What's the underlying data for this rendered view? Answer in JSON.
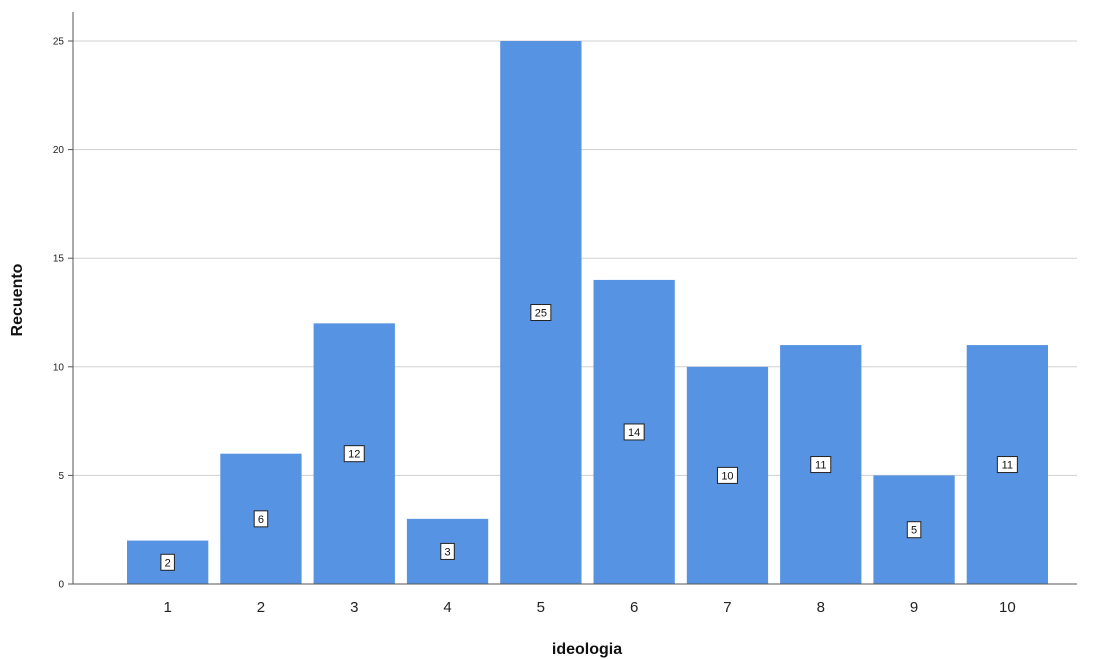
{
  "chart_data": {
    "type": "bar",
    "categories": [
      "1",
      "2",
      "3",
      "4",
      "5",
      "6",
      "7",
      "8",
      "9",
      "10"
    ],
    "values": [
      2,
      6,
      12,
      3,
      25,
      14,
      10,
      11,
      5,
      11
    ],
    "data_labels": [
      "2",
      "6",
      "12",
      "3",
      "25",
      "14",
      "10",
      "11",
      "5",
      "11"
    ],
    "xlabel": "ideologia",
    "ylabel": "Recuento",
    "ylim": [
      0,
      25
    ],
    "yticks": [
      0,
      5,
      10,
      15,
      20,
      25
    ],
    "grid": true,
    "colors": {
      "bar": "#5694e3",
      "grid": "#d0d0d0",
      "axis": "#555555"
    }
  }
}
